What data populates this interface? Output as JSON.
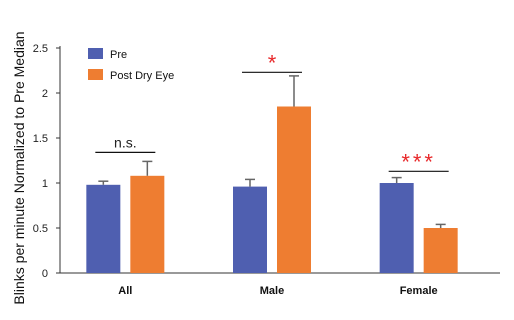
{
  "chart_data": {
    "type": "bar",
    "title": "",
    "xlabel": "",
    "ylabel": "Blinks per minute Normalized to Pre Median",
    "ylim": [
      0,
      2.5
    ],
    "yticks": [
      "0",
      "0.5",
      "1",
      "1.5",
      "2",
      "2.5"
    ],
    "grid": false,
    "legend_position": "top-left",
    "categories": [
      "All",
      "Male",
      "Female"
    ],
    "series": [
      {
        "name": "Pre",
        "color": "#4F5FB0",
        "values": [
          0.98,
          0.96,
          1.0
        ],
        "errors": [
          0.04,
          0.08,
          0.06
        ]
      },
      {
        "name": "Post Dry Eye",
        "color": "#EE7D31",
        "values": [
          1.08,
          1.85,
          0.5
        ],
        "errors": [
          0.16,
          0.34,
          0.04
        ]
      }
    ],
    "annotations": [
      {
        "category": "All",
        "text": "n.s.",
        "color": "#222222",
        "y": 1.34
      },
      {
        "category": "Male",
        "text": "*",
        "color": "#E8282A",
        "y": 2.23
      },
      {
        "category": "Female",
        "text": "***",
        "color": "#E8282A",
        "y": 1.13
      }
    ]
  }
}
